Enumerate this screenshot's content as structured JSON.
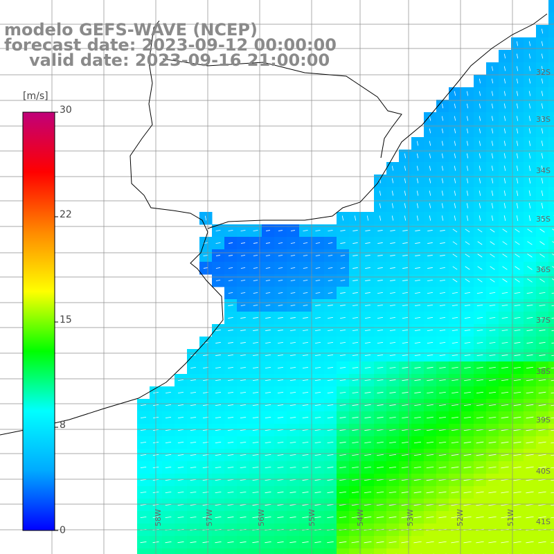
{
  "title": {
    "model": "modelo GEFS-WAVE (NCEP)",
    "forecast": "forecast date: 2023-09-12 00:00:00",
    "valid": "valid date: 2023-09-16 21:00:00"
  },
  "colorbar": {
    "unit": "[m/s]",
    "ticks": [
      "30",
      "22",
      "15",
      "8",
      "0"
    ],
    "colors": [
      "#0000ff",
      "#00aaff",
      "#00ffff",
      "#00ff00",
      "#ffff00",
      "#ff8800",
      "#ff0000",
      "#c0007a"
    ]
  },
  "map": {
    "lat_labels": [
      "32S",
      "33S",
      "34S",
      "35S",
      "36S",
      "37S",
      "38S",
      "39S",
      "40S",
      "41S"
    ],
    "lon_labels": [
      "58W",
      "57W",
      "56W",
      "55W",
      "54W",
      "53W",
      "52W",
      "51W"
    ],
    "land_color": "#ffffff",
    "coast_color": "#000000",
    "grid_color": "#8c8c8c",
    "arrow_color": "#ffffff"
  }
}
